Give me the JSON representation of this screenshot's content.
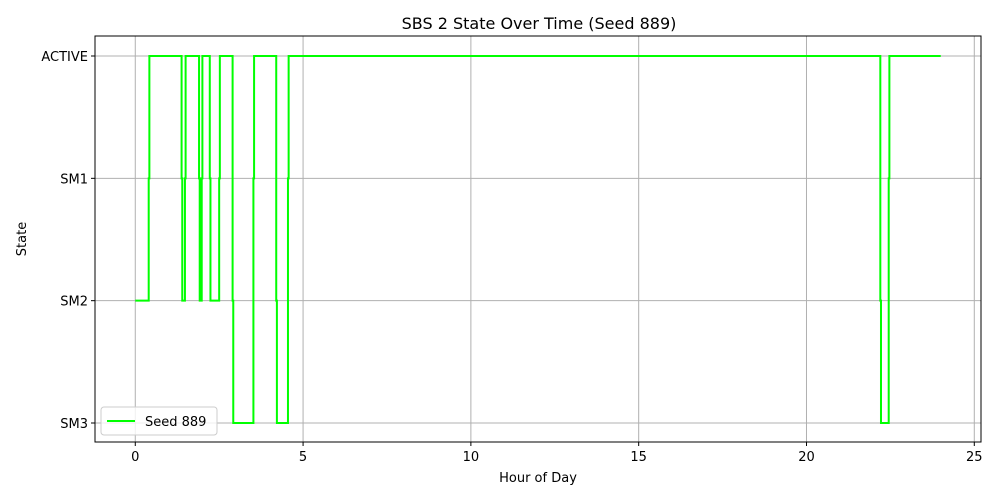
{
  "chart_data": {
    "type": "line",
    "title": "SBS 2 State Over Time (Seed 889)",
    "xlabel": "Hour of Day",
    "ylabel": "State",
    "xlim": [
      -1.2,
      25.2
    ],
    "x_ticks": [
      0,
      5,
      10,
      15,
      20,
      25
    ],
    "y_categories": [
      "SM3",
      "SM2",
      "SM1",
      "ACTIVE"
    ],
    "grid": true,
    "legend_position": "lower-left",
    "colors": {
      "series": "#00ff00",
      "grid": "#b0b0b0",
      "axis": "#000000"
    },
    "series": [
      {
        "name": "Seed 889",
        "x": [
          0.0,
          0.4,
          0.4,
          0.42,
          0.42,
          1.38,
          1.38,
          1.4,
          1.4,
          1.48,
          1.48,
          1.5,
          1.5,
          1.9,
          1.9,
          1.92,
          1.92,
          1.98,
          1.98,
          2.0,
          2.0,
          2.22,
          2.22,
          2.24,
          2.24,
          2.5,
          2.5,
          2.52,
          2.52,
          2.9,
          2.9,
          2.92,
          2.92,
          3.52,
          3.52,
          3.54,
          3.54,
          4.2,
          4.2,
          4.22,
          4.22,
          4.55,
          4.55,
          4.57,
          4.57,
          22.2,
          22.2,
          22.22,
          22.22,
          22.45,
          22.45,
          22.47,
          22.47,
          24.0
        ],
        "y": [
          "SM2",
          "SM2",
          "SM1",
          "SM1",
          "ACTIVE",
          "ACTIVE",
          "SM1",
          "SM1",
          "SM2",
          "SM2",
          "SM1",
          "SM1",
          "ACTIVE",
          "ACTIVE",
          "SM1",
          "SM1",
          "SM2",
          "SM2",
          "SM1",
          "SM1",
          "ACTIVE",
          "ACTIVE",
          "SM1",
          "SM1",
          "SM2",
          "SM2",
          "SM1",
          "SM1",
          "ACTIVE",
          "ACTIVE",
          "SM2",
          "SM2",
          "SM3",
          "SM3",
          "SM1",
          "SM1",
          "ACTIVE",
          "ACTIVE",
          "SM2",
          "SM2",
          "SM3",
          "SM3",
          "SM1",
          "SM1",
          "ACTIVE",
          "ACTIVE",
          "SM2",
          "SM2",
          "SM3",
          "SM3",
          "SM1",
          "SM1",
          "ACTIVE",
          "ACTIVE"
        ]
      }
    ]
  }
}
